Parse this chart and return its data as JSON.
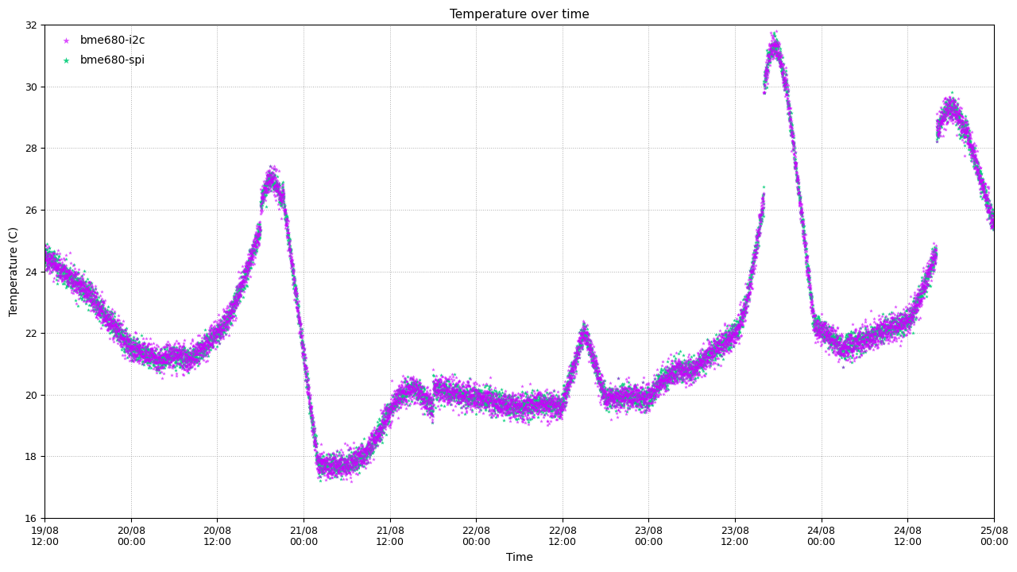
{
  "title": "Temperature over time",
  "xlabel": "Time",
  "ylabel": "Temperature (C)",
  "ylim": [
    16,
    32
  ],
  "yticks": [
    16,
    18,
    20,
    22,
    24,
    26,
    28,
    30,
    32
  ],
  "color_i2c": "#cc00ff",
  "color_spi": "#00cc77",
  "label_i2c": "bme680-i2c",
  "label_spi": "bme680-spi",
  "marker": "*",
  "markersize": 3.5,
  "background_color": "#ffffff",
  "grid_color": "#999999",
  "title_fontsize": 11,
  "axis_fontsize": 10,
  "tick_fontsize": 9,
  "xtick_labels": [
    "19/08\n12:00",
    "20/08\n00:00",
    "20/08\n12:00",
    "21/08\n00:00",
    "21/08\n12:00",
    "22/08\n00:00",
    "22/08\n12:00",
    "23/08\n00:00",
    "23/08\n12:00",
    "24/08\n00:00",
    "24/08\n12:00",
    "25/08\n00:00"
  ]
}
